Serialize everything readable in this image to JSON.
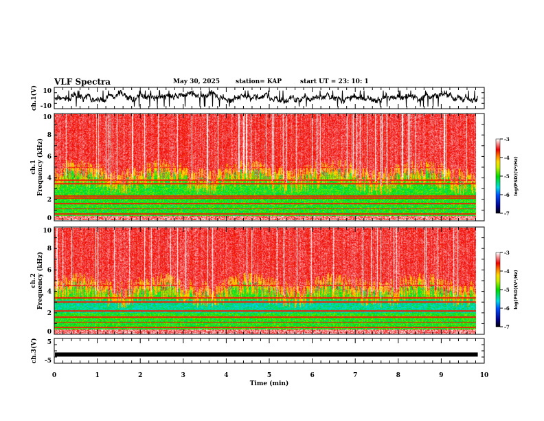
{
  "header": {
    "title": "VLF Spectra",
    "date": "May 30, 2025",
    "station": "station= KAP",
    "start": "start  UT  =   23: 10: 1"
  },
  "chart_data": [
    {
      "type": "line",
      "name": "ch1-waveform",
      "ylabel": "ch.1(V)",
      "ylim": [
        -10,
        10
      ],
      "yticks": [
        "10",
        "-10"
      ],
      "xlim": [
        0,
        10
      ]
    },
    {
      "type": "heatmap",
      "name": "ch1-spectrogram",
      "ylabel": "ch.1\nFrequency (kHz)",
      "ylim": [
        0,
        10
      ],
      "yticks": [
        "0",
        "2",
        "4",
        "6",
        "8",
        "10"
      ],
      "xlim": [
        0,
        10
      ],
      "colorbar": {
        "label": "log(PSD)(V²/Hz)",
        "range": [
          -7,
          -3
        ],
        "ticks": [
          "-3",
          "-4",
          "-5",
          "-6",
          "-7"
        ]
      }
    },
    {
      "type": "heatmap",
      "name": "ch2-spectrogram",
      "ylabel": "ch.2\nFrequency (kHz)",
      "ylim": [
        0,
        10
      ],
      "yticks": [
        "0",
        "2",
        "4",
        "6",
        "8",
        "10"
      ],
      "xlim": [
        0,
        10
      ],
      "colorbar": {
        "label": "log(PSD)(V²/Hz)",
        "range": [
          -7,
          -3
        ],
        "ticks": [
          "-3",
          "-4",
          "-5",
          "-6",
          "-7"
        ]
      }
    },
    {
      "type": "line",
      "name": "ch3-waveform",
      "ylabel": "ch.3(V)",
      "ylim": [
        -5,
        5
      ],
      "yticks": [
        "5",
        "-5"
      ],
      "xlim": [
        0,
        10
      ],
      "level": -1.5
    },
    {
      "type": "axis",
      "xlabel": "Time  (min)",
      "xticks": [
        "0",
        "1",
        "2",
        "3",
        "4",
        "5",
        "6",
        "7",
        "8",
        "9",
        "10"
      ],
      "data_end_min": 9.85
    }
  ]
}
